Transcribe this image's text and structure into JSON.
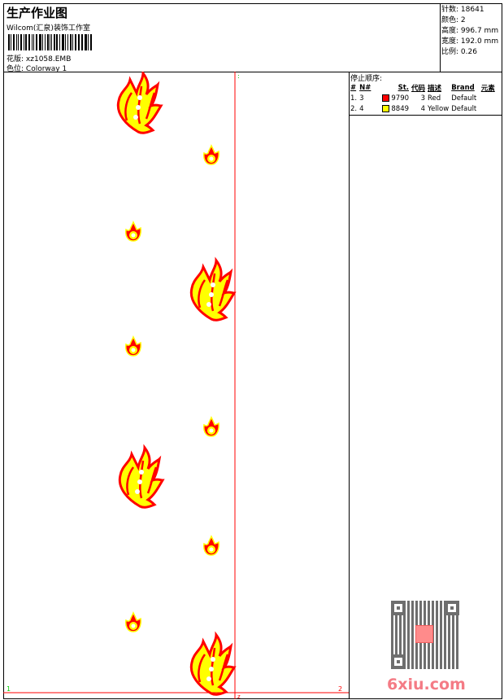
{
  "header": {
    "title": "生产作业图",
    "company": "Wilcom(汇泉)装饰工作室",
    "design_label": "花版:",
    "design_value": "xz1058.EMB",
    "colorway_label": "色位:",
    "colorway_value": "Colorway 1"
  },
  "info": [
    {
      "label": "针数:",
      "value": "18641"
    },
    {
      "label": "颜色:",
      "value": "2"
    },
    {
      "label": "高度:",
      "value": "996.7 mm"
    },
    {
      "label": "宽度:",
      "value": "192.0 mm"
    },
    {
      "label": "比例:",
      "value": "0.26"
    }
  ],
  "stop_sequence": {
    "caption": "停止顺序:",
    "columns": [
      "#",
      "N#",
      "St.",
      "代码",
      "描述",
      "Brand",
      "元素"
    ],
    "rows": [
      {
        "idx": "1.",
        "n": "3",
        "color": "#ff0000",
        "st": "9790",
        "code": "3",
        "desc": "Red",
        "brand": "Default"
      },
      {
        "idx": "2.",
        "n": "4",
        "color": "#ffff00",
        "st": "8849",
        "code": "4",
        "desc": "Yellow",
        "brand": "Default"
      }
    ]
  },
  "canvas": {
    "marker_start": "1",
    "marker_end": "2",
    "marker_top": ":",
    "marker_bottom": "z"
  },
  "watermark": "6xiu.com",
  "colors": {
    "red": "#ff0000",
    "yellow": "#ffff00",
    "marker_green": "#00cc00"
  }
}
